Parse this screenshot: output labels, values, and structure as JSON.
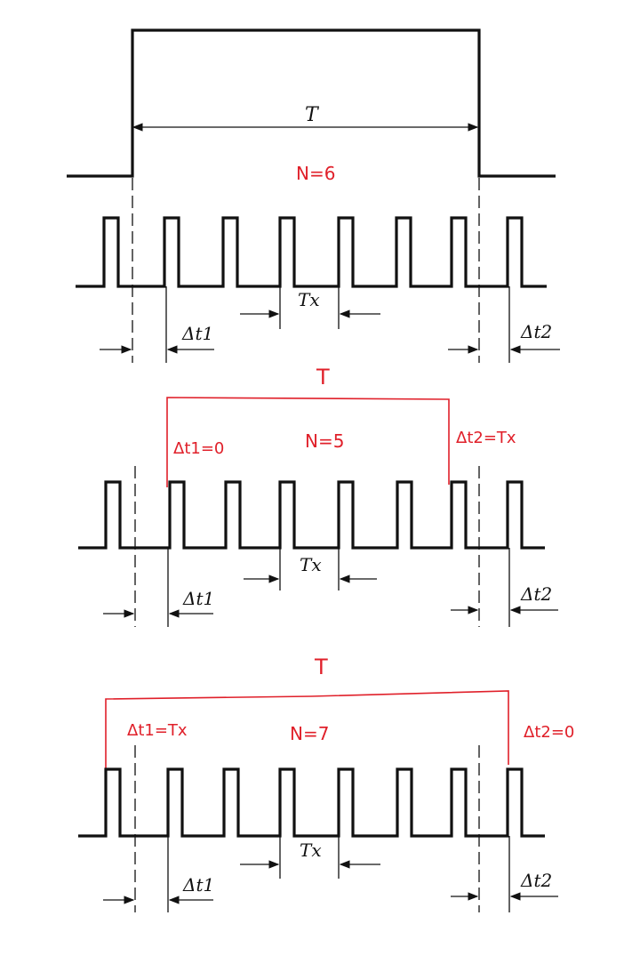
{
  "panel1": {
    "window_label": "T",
    "count_label": "N=6",
    "period_label": "Tx",
    "dt1_label": "Δt1",
    "dt2_label": "Δt2"
  },
  "panel2": {
    "window_label": "T",
    "count_label": "N=5",
    "dt1_note": "Δt1=0",
    "dt2_note": "Δt2=Tx",
    "period_label": "Tx",
    "dt1_label": "Δt1",
    "dt2_label": "Δt2"
  },
  "panel3": {
    "window_label": "T",
    "count_label": "N=7",
    "dt1_note": "Δt1=Tx",
    "dt2_note": "Δt2=0",
    "period_label": "Tx",
    "dt1_label": "Δt1",
    "dt2_label": "Δt2"
  },
  "colors": {
    "ink": "#111111",
    "annotation": "#e0202a"
  }
}
